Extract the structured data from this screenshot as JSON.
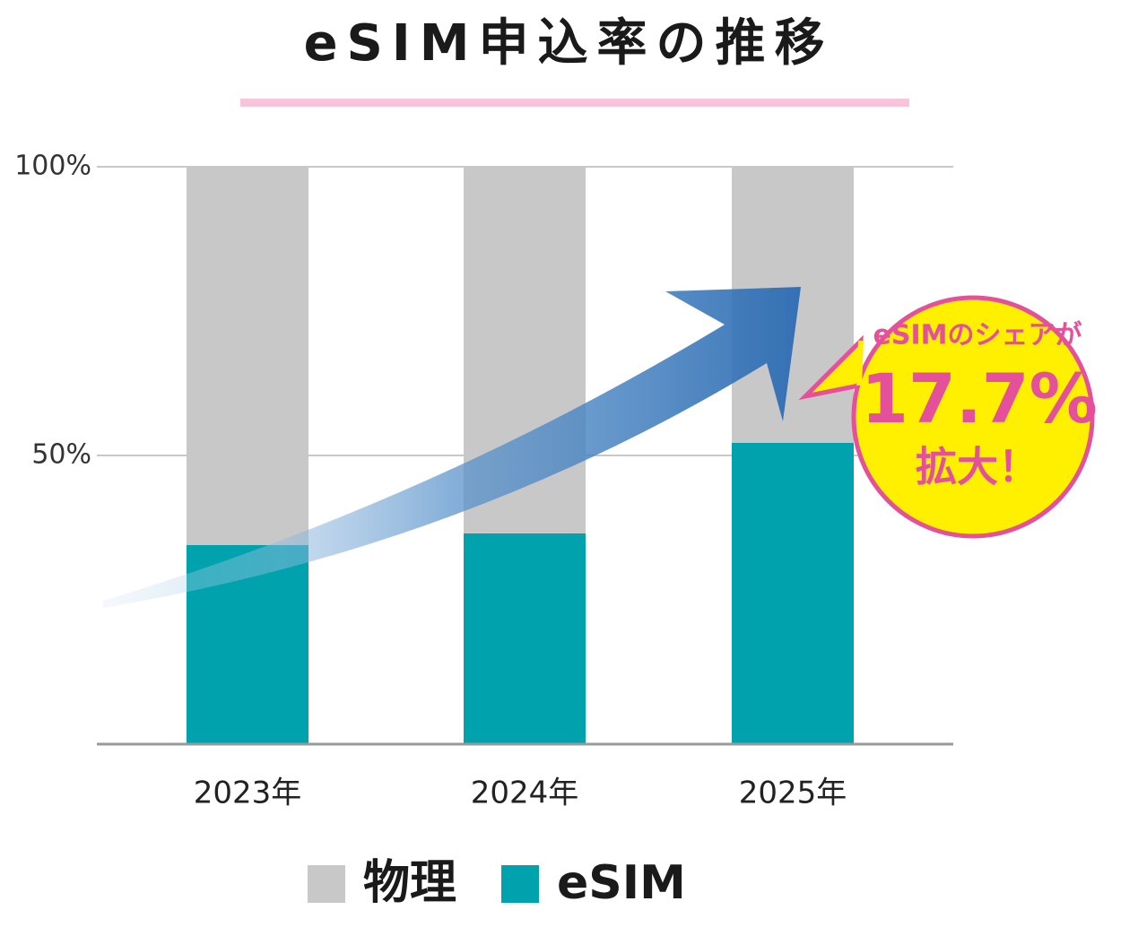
{
  "chart_data": {
    "type": "stacked-bar",
    "title": "eSIM申込率の推移",
    "categories": [
      "2023年",
      "2024年",
      "2025年"
    ],
    "series": [
      {
        "name": "eSIM",
        "color": "#00a3ad",
        "values": [
          34.5,
          36.5,
          52.2
        ]
      },
      {
        "name": "物理",
        "color": "#c8c8c8",
        "values": [
          65.5,
          63.5,
          47.8
        ]
      }
    ],
    "ylim": [
      0,
      100
    ],
    "yticks": [
      {
        "value": 50,
        "label": "50%"
      },
      {
        "value": 100,
        "label": "100%"
      }
    ],
    "grid": true,
    "legend": "bottom",
    "annotations": [
      "eSIMのシェアが",
      "17.7%",
      "拡大！"
    ]
  }
}
